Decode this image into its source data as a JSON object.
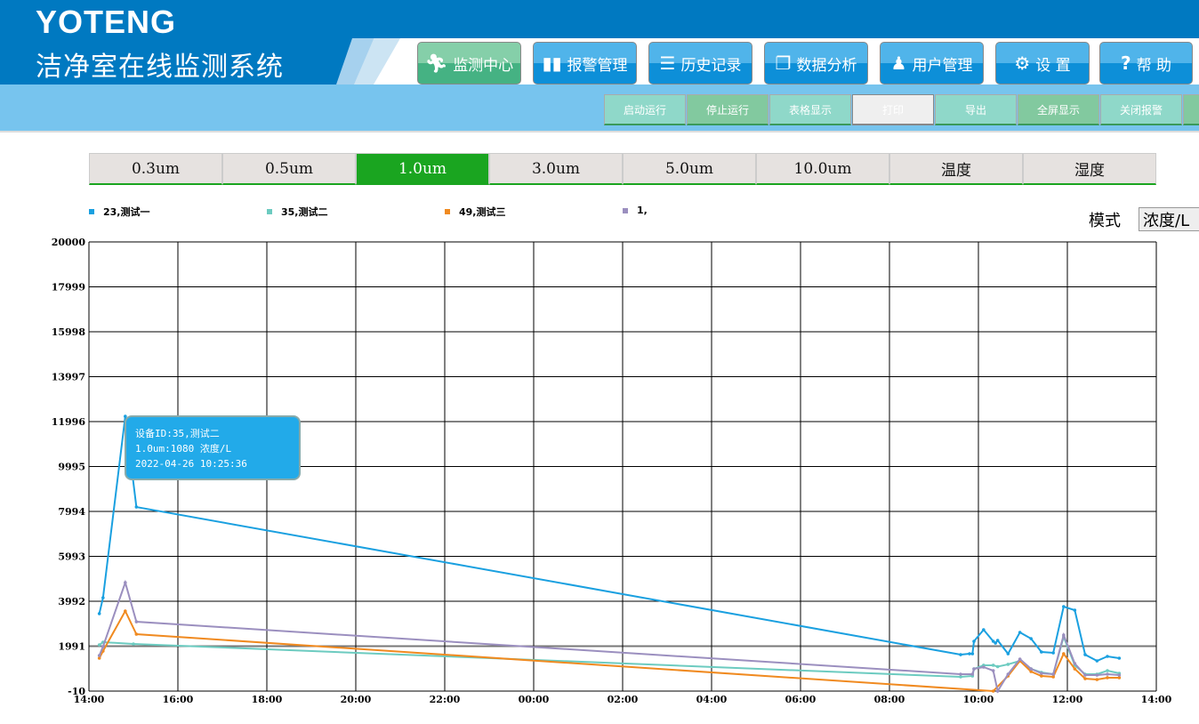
{
  "header": {
    "brand": "YOTENG",
    "system_name": "洁净室在线监测系统"
  },
  "nav": [
    {
      "label": "监测中心",
      "icon": "running-person-icon",
      "active": true
    },
    {
      "label": "报警管理",
      "icon": "bar-chart-icon"
    },
    {
      "label": "历史记录",
      "icon": "document-icon"
    },
    {
      "label": "数据分析",
      "icon": "book-icon"
    },
    {
      "label": "用户管理",
      "icon": "users-icon"
    },
    {
      "label": "设 置",
      "icon": "gear-icon"
    },
    {
      "label": "帮 助",
      "icon": "question-icon"
    }
  ],
  "toolbar": [
    "启动运行",
    "停止运行",
    "表格显示",
    "打印",
    "导出",
    "全屏显示",
    "关闭报警"
  ],
  "tabs": [
    "0.3um",
    "0.5um",
    "1.0um",
    "3.0um",
    "5.0um",
    "10.0um",
    "温度",
    "湿度"
  ],
  "active_tab": "1.0um",
  "mode": {
    "label": "模式",
    "value": "浓度/L"
  },
  "tooltip": {
    "line1": "设备ID:35,测试二",
    "line2": "1.0um:1080 浓度/L",
    "line3": "2022-04-26 10:25:36"
  },
  "chart_data": {
    "type": "line",
    "legend_position": "top",
    "grid": true,
    "ylim": [
      -10,
      20000
    ],
    "yticks": [
      "20000",
      "17999",
      "15998",
      "13997",
      "11996",
      "9995",
      "7994",
      "5993",
      "3992",
      "1991",
      "-10"
    ],
    "xlim": [
      "2022-04-25 14:00",
      "2022-04-26 14:00"
    ],
    "xticks": [
      "14:00",
      "16:00",
      "18:00",
      "20:00",
      "22:00",
      "00:00",
      "02:00",
      "04:00",
      "06:00",
      "08:00",
      "10:00",
      "12:00",
      "14:00"
    ],
    "series": [
      {
        "name": "23,测试一",
        "color": "#1aa0e0",
        "points": [
          [
            "2022-04-25 14:14",
            3440
          ],
          [
            "2022-04-25 14:19",
            4150
          ],
          [
            "2022-04-25 14:49",
            12230
          ],
          [
            "2022-04-25 15:04",
            8190
          ],
          [
            "2022-04-26 09:36",
            1614
          ],
          [
            "2022-04-26 09:48",
            1654
          ],
          [
            "2022-04-26 09:52",
            1654
          ],
          [
            "2022-04-26 09:54",
            2209
          ],
          [
            "2022-04-26 10:07",
            2724
          ],
          [
            "2022-04-26 10:20",
            2209
          ],
          [
            "2022-04-26 10:23",
            2130
          ],
          [
            "2022-04-26 10:26",
            2248
          ],
          [
            "2022-04-26 10:40",
            1654
          ],
          [
            "2022-04-26 10:56",
            2605
          ],
          [
            "2022-04-26 11:11",
            2328
          ],
          [
            "2022-04-26 11:25",
            1733
          ],
          [
            "2022-04-26 11:41",
            1694
          ],
          [
            "2022-04-26 11:55",
            3754
          ],
          [
            "2022-04-26 12:10",
            3596
          ],
          [
            "2022-04-26 12:24",
            1614
          ],
          [
            "2022-04-26 12:40",
            1337
          ],
          [
            "2022-04-26 12:54",
            1535
          ],
          [
            "2022-04-26 13:10",
            1456
          ]
        ]
      },
      {
        "name": "35,测试二",
        "color": "#6ccbc0",
        "points": [
          [
            "2022-04-25 14:14",
            2050
          ],
          [
            "2022-04-25 14:19",
            2169
          ],
          [
            "2022-04-25 15:00",
            2090
          ],
          [
            "2022-04-26 09:36",
            624
          ],
          [
            "2022-04-26 09:52",
            664
          ],
          [
            "2022-04-26 09:54",
            980
          ],
          [
            "2022-04-26 10:07",
            1140
          ],
          [
            "2022-04-26 10:20",
            1140
          ],
          [
            "2022-04-26 10:26",
            1080
          ],
          [
            "2022-04-26 10:40",
            1180
          ],
          [
            "2022-04-26 10:56",
            1337
          ],
          [
            "2022-04-26 11:11",
            980
          ],
          [
            "2022-04-26 11:25",
            822
          ],
          [
            "2022-04-26 11:41",
            743
          ],
          [
            "2022-04-26 11:55",
            2407
          ],
          [
            "2022-04-26 12:10",
            1140
          ],
          [
            "2022-04-26 12:24",
            743
          ],
          [
            "2022-04-26 12:40",
            743
          ],
          [
            "2022-04-26 12:54",
            901
          ],
          [
            "2022-04-26 13:10",
            782
          ]
        ]
      },
      {
        "name": "49,测试三",
        "color": "#f08a20",
        "points": [
          [
            "2022-04-25 14:14",
            1456
          ],
          [
            "2022-04-25 14:19",
            1773
          ],
          [
            "2022-04-25 14:49",
            3556
          ],
          [
            "2022-04-25 15:04",
            2526
          ],
          [
            "2022-04-26 10:20",
            -10
          ],
          [
            "2022-04-26 10:40",
            664
          ],
          [
            "2022-04-26 10:56",
            1337
          ],
          [
            "2022-04-26 11:11",
            862
          ],
          [
            "2022-04-26 11:25",
            664
          ],
          [
            "2022-04-26 11:41",
            624
          ],
          [
            "2022-04-26 11:55",
            1654
          ],
          [
            "2022-04-26 12:10",
            980
          ],
          [
            "2022-04-26 12:24",
            545
          ],
          [
            "2022-04-26 12:40",
            505
          ],
          [
            "2022-04-26 12:54",
            585
          ],
          [
            "2022-04-26 13:10",
            585
          ]
        ]
      },
      {
        "name": "1,",
        "color": "#9b8fbf",
        "points": [
          [
            "2022-04-25 14:14",
            1575
          ],
          [
            "2022-04-25 14:19",
            1971
          ],
          [
            "2022-04-25 14:49",
            4824
          ],
          [
            "2022-04-25 15:04",
            3080
          ],
          [
            "2022-04-26 09:36",
            743
          ],
          [
            "2022-04-26 09:52",
            743
          ],
          [
            "2022-04-26 09:54",
            980
          ],
          [
            "2022-04-26 10:07",
            1060
          ],
          [
            "2022-04-26 10:20",
            901
          ],
          [
            "2022-04-26 10:26",
            -10
          ],
          [
            "2022-04-26 10:40",
            743
          ],
          [
            "2022-04-26 10:56",
            1416
          ],
          [
            "2022-04-26 11:11",
            980
          ],
          [
            "2022-04-26 11:25",
            782
          ],
          [
            "2022-04-26 11:41",
            743
          ],
          [
            "2022-04-26 11:55",
            2486
          ],
          [
            "2022-04-26 12:10",
            1218
          ],
          [
            "2022-04-26 12:24",
            703
          ],
          [
            "2022-04-26 12:40",
            703
          ],
          [
            "2022-04-26 12:54",
            743
          ],
          [
            "2022-04-26 13:10",
            703
          ]
        ]
      }
    ]
  }
}
